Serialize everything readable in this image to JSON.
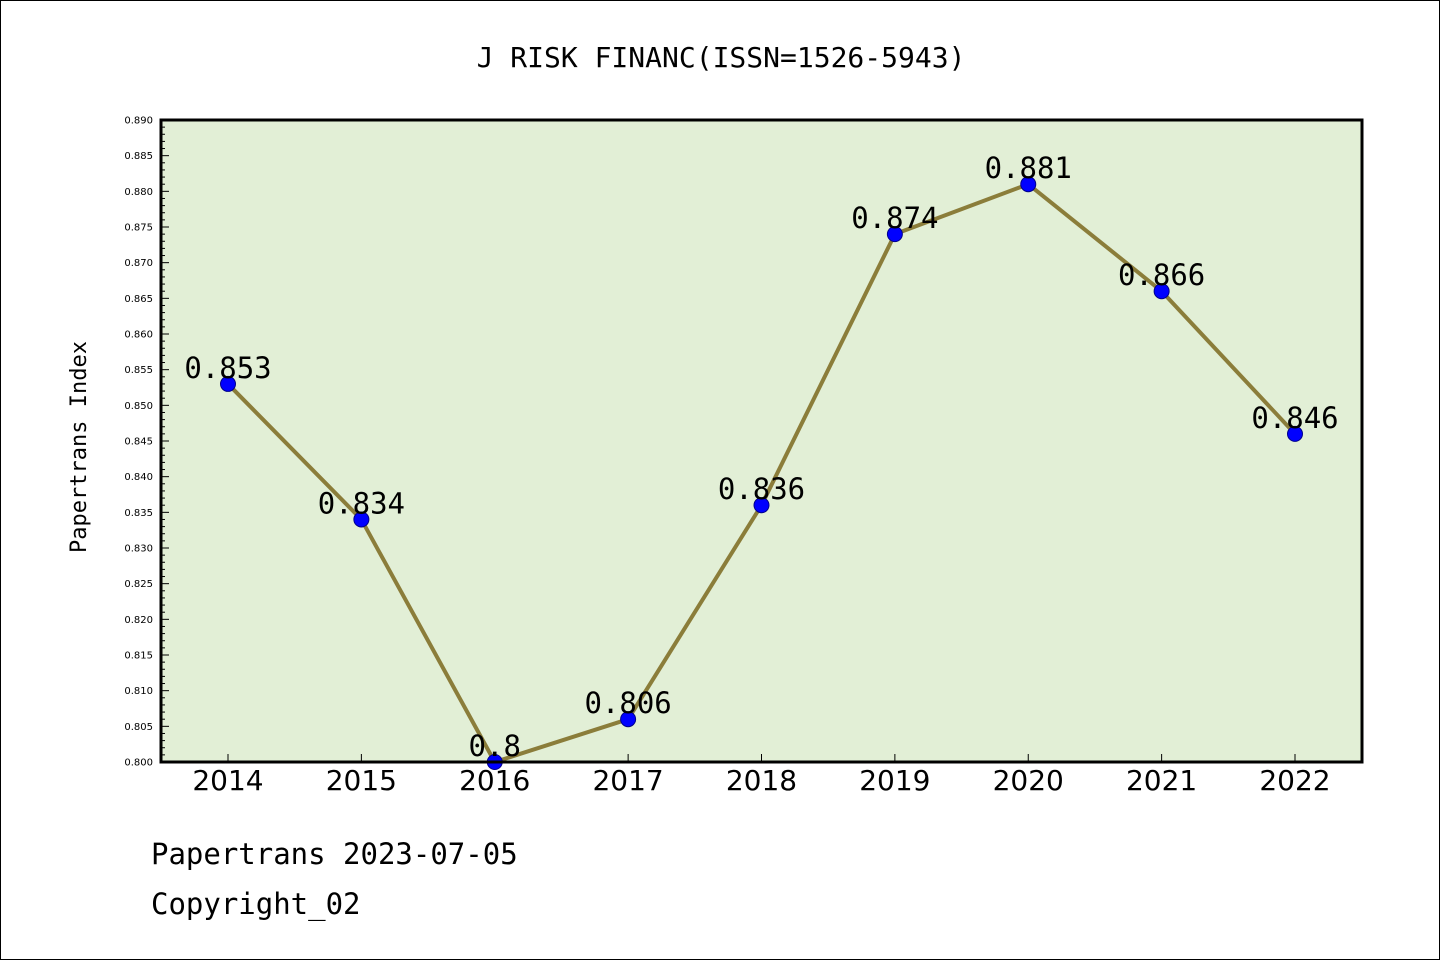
{
  "chart_data": {
    "type": "line",
    "title": "J RISK FINANC(ISSN=1526-5943)",
    "xlabel": "",
    "ylabel": "Papertrans Index",
    "categories": [
      "2014",
      "2015",
      "2016",
      "2017",
      "2018",
      "2019",
      "2020",
      "2021",
      "2022"
    ],
    "series": [
      {
        "values": [
          0.853,
          0.834,
          0.8,
          0.806,
          0.836,
          0.874,
          0.881,
          0.866,
          0.846
        ]
      }
    ],
    "data_labels": [
      "0.853",
      "0.834",
      "0.8",
      "0.806",
      "0.836",
      "0.874",
      "0.881",
      "0.866",
      "0.846"
    ],
    "ylim": [
      0.8,
      0.89
    ],
    "yticks": [
      "0.800",
      "0.805",
      "0.810",
      "0.815",
      "0.820",
      "0.825",
      "0.830",
      "0.835",
      "0.840",
      "0.845",
      "0.850",
      "0.855",
      "0.860",
      "0.865",
      "0.870",
      "0.875",
      "0.880",
      "0.885",
      "0.890"
    ],
    "grid": false,
    "colors": {
      "line": "#8b7d3a",
      "marker": "#0000ff",
      "plot_background": "#e2efd6"
    }
  },
  "footer": {
    "date_line": "Papertrans 2023-07-05",
    "copyright": "Copyright_02"
  }
}
